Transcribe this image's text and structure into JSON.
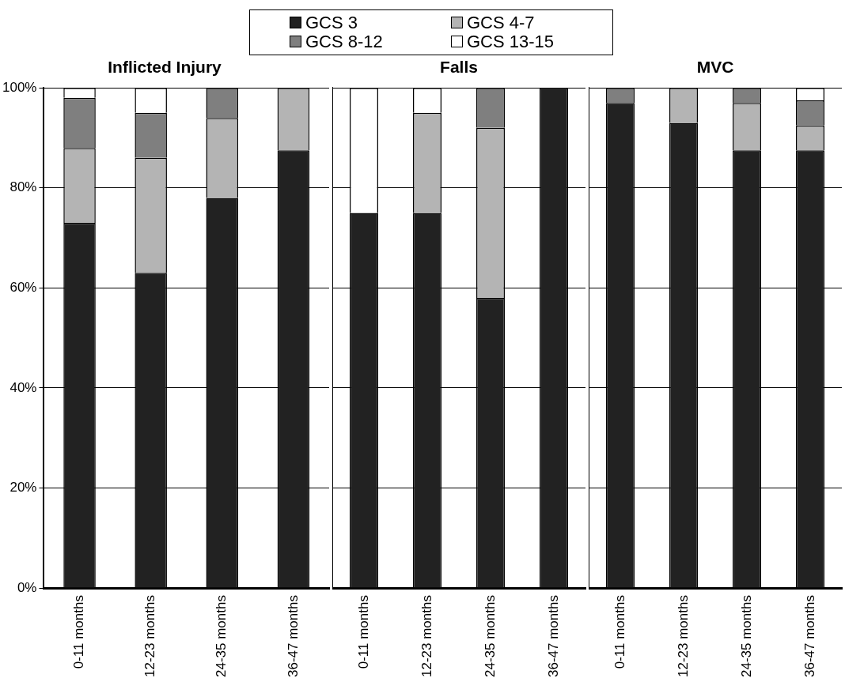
{
  "chart_data": [
    {
      "type": "bar",
      "title": "Inflicted Injury",
      "stacked": true,
      "legend": "top",
      "grid": "y",
      "categories": [
        "0-11 months",
        "12-23 months",
        "24-35 months",
        "36-47 months"
      ],
      "ylim": [
        0,
        100
      ],
      "yticks": [
        {
          "value": 0,
          "label": "0%"
        },
        {
          "value": 20,
          "label": "20%"
        },
        {
          "value": 40,
          "label": "40%"
        },
        {
          "value": 60,
          "label": "60%"
        },
        {
          "value": 80,
          "label": "80%"
        },
        {
          "value": 100,
          "label": "100%"
        }
      ],
      "series": [
        {
          "name": "GCS 3",
          "color": "#222222",
          "values": [
            73,
            63,
            78,
            87.5
          ]
        },
        {
          "name": "GCS 4-7",
          "color": "#b4b4b4",
          "values": [
            15,
            23,
            16,
            12.5
          ]
        },
        {
          "name": "GCS 8-12",
          "color": "#7f7f7f",
          "values": [
            10,
            9,
            6,
            0
          ]
        },
        {
          "name": "GCS 13-15",
          "color": "#ffffff",
          "values": [
            2,
            5,
            0,
            0
          ]
        }
      ]
    },
    {
      "type": "bar",
      "title": "Falls",
      "stacked": true,
      "grid": "y",
      "tick_labels": "x",
      "categories": [
        "0-11 months",
        "12-23 months",
        "24-35 months",
        "36-47 months"
      ],
      "ylim": [
        0,
        100
      ],
      "yticks": [
        0,
        20,
        40,
        60,
        80,
        100
      ],
      "series": [
        {
          "color": "#222222",
          "values": [
            75,
            75,
            58,
            100
          ]
        },
        {
          "color": "#b4b4b4",
          "values": [
            0,
            20,
            34,
            0
          ]
        },
        {
          "color": "#7f7f7f",
          "values": [
            0,
            0,
            8,
            0
          ]
        },
        {
          "color": "#ffffff",
          "values": [
            25,
            5,
            0,
            0
          ]
        }
      ]
    },
    {
      "type": "bar",
      "title": "MVC",
      "stacked": true,
      "grid": "y",
      "tick_labels": "x",
      "categories": [
        "0-11 months",
        "12-23 months",
        "24-35 months",
        "36-47 months"
      ],
      "ylim": [
        0,
        100
      ],
      "yticks": [
        0,
        20,
        40,
        60,
        80,
        100
      ],
      "series": [
        {
          "color": "#222222",
          "values": [
            97,
            93,
            87.5,
            87.5
          ]
        },
        {
          "color": "#b4b4b4",
          "values": [
            0,
            7,
            9.5,
            5
          ]
        },
        {
          "color": "#7f7f7f",
          "values": [
            3,
            0,
            3,
            5
          ]
        },
        {
          "color": "#ffffff",
          "values": [
            0,
            0,
            0,
            2.5
          ]
        }
      ]
    }
  ]
}
